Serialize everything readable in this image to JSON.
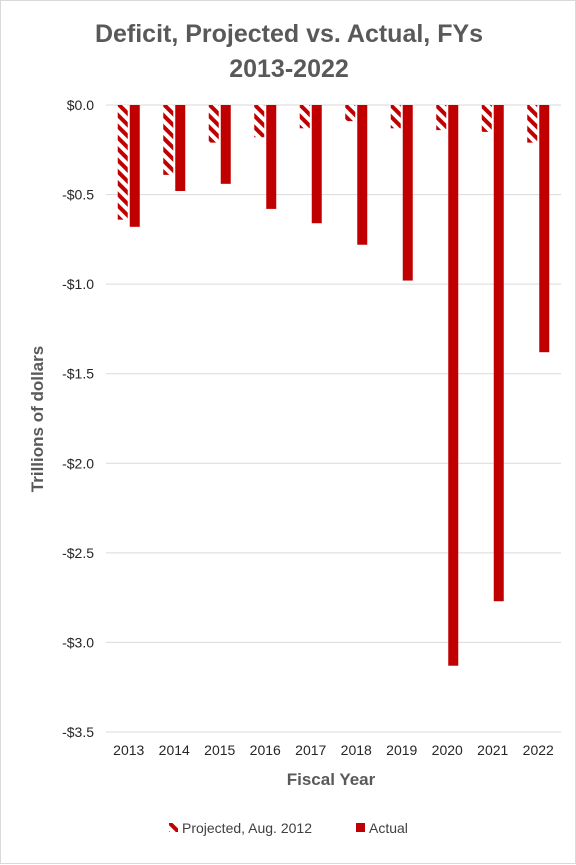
{
  "chart_data": {
    "type": "bar",
    "title": "Deficit, Projected vs. Actual, FYs",
    "subtitle": "2013-2022",
    "xlabel": "Fiscal Year",
    "ylabel": "Trillions of dollars",
    "categories": [
      "2013",
      "2014",
      "2015",
      "2016",
      "2017",
      "2018",
      "2019",
      "2020",
      "2021",
      "2022"
    ],
    "series": [
      {
        "name": "Projected, Aug. 2012",
        "color": "#c00000",
        "pattern": "diagonal-stripes",
        "values": [
          -0.64,
          -0.39,
          -0.21,
          -0.18,
          -0.13,
          -0.09,
          -0.13,
          -0.14,
          -0.15,
          -0.21
        ]
      },
      {
        "name": "Actual",
        "color": "#c00000",
        "pattern": "solid",
        "values": [
          -0.68,
          -0.48,
          -0.44,
          -0.58,
          -0.66,
          -0.78,
          -0.98,
          -3.13,
          -2.77,
          -1.38
        ]
      }
    ],
    "ylim": [
      -3.5,
      0
    ],
    "yticks": [
      0,
      -0.5,
      -1,
      -1.5,
      -2,
      -2.5,
      -3,
      -3.5
    ],
    "ytick_labels": [
      "$0.0",
      "-$0.5",
      "-$1.0",
      "-$1.5",
      "-$2.0",
      "-$2.5",
      "-$3.0",
      "-$3.5"
    ],
    "grid": true,
    "legend_position": "bottom"
  }
}
